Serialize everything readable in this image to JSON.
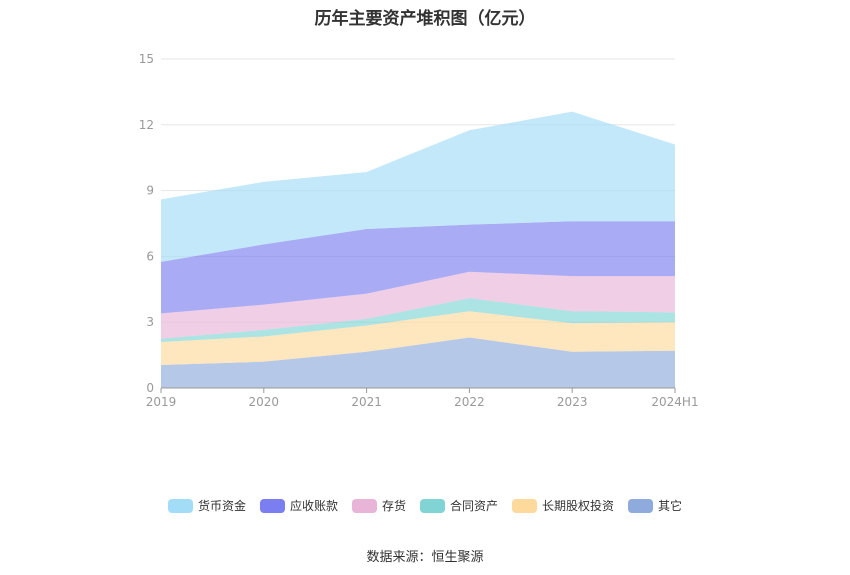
{
  "chart_data": {
    "type": "area",
    "stacked": true,
    "title": "历年主要资产堆积图（亿元）",
    "categories": [
      "2019",
      "2020",
      "2021",
      "2022",
      "2023",
      "2024H1"
    ],
    "ylim": [
      0,
      15
    ],
    "yticks": [
      0,
      3,
      6,
      9,
      12,
      15
    ],
    "grid": true,
    "legend_position": "bottom",
    "series": [
      {
        "name": "其它",
        "color": "#8faadc",
        "values": [
          1.05,
          1.2,
          1.65,
          2.3,
          1.65,
          1.7
        ]
      },
      {
        "name": "长期股权投资",
        "color": "#fdd99b",
        "values": [
          1.05,
          1.15,
          1.2,
          1.2,
          1.3,
          1.3
        ]
      },
      {
        "name": "合同资产",
        "color": "#80d4d4",
        "values": [
          0.15,
          0.3,
          0.3,
          0.6,
          0.55,
          0.45
        ]
      },
      {
        "name": "存货",
        "color": "#e8b4d8",
        "values": [
          1.15,
          1.15,
          1.15,
          1.2,
          1.6,
          1.65
        ]
      },
      {
        "name": "应收账款",
        "color": "#7b7ef0",
        "values": [
          2.35,
          2.75,
          2.95,
          2.15,
          2.5,
          2.5
        ]
      },
      {
        "name": "货币资金",
        "color": "#a3dcf7",
        "values": [
          2.85,
          2.85,
          2.6,
          4.3,
          5.0,
          3.5
        ]
      }
    ],
    "legend_order": [
      "货币资金",
      "应收账款",
      "存货",
      "合同资产",
      "长期股权投资",
      "其它"
    ]
  },
  "source": "数据来源：恒生聚源"
}
